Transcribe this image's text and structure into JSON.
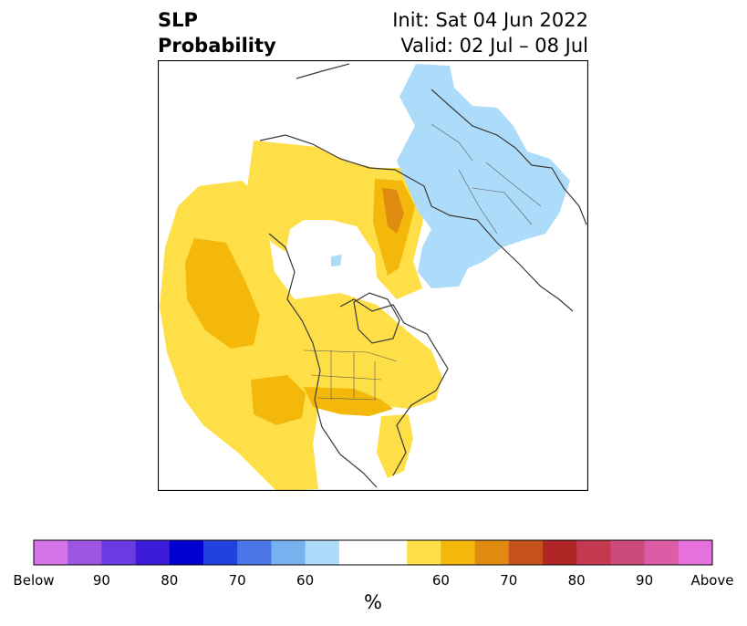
{
  "title": {
    "variable": "SLP",
    "quantity": "Probability",
    "init": "Init: Sat 04 Jun 2022",
    "valid": "Valid: 02 Jul – 08 Jul"
  },
  "colorbar": {
    "unit": "%",
    "colors": [
      "#d474e8",
      "#9b55e0",
      "#6a3be0",
      "#3b1ad8",
      "#0000d0",
      "#2340e0",
      "#4b76e8",
      "#76b1f0",
      "#acdcfa",
      "#ffffff",
      "#ffffff",
      "#ffdf48",
      "#f3b80a",
      "#e08a12",
      "#c4521a",
      "#b02626",
      "#c43850",
      "#cc4a7c",
      "#dc5ca6",
      "#e670dc"
    ],
    "tick_labels": [
      "Below",
      "90",
      "80",
      "70",
      "60",
      "60",
      "70",
      "80",
      "90",
      "Above"
    ]
  },
  "map_colors": {
    "land_line": "#3a3a3a",
    "light_yellow": "#ffdf48",
    "gold": "#f3b80a",
    "orange": "#e08a12",
    "light_blue": "#acdcfa"
  }
}
